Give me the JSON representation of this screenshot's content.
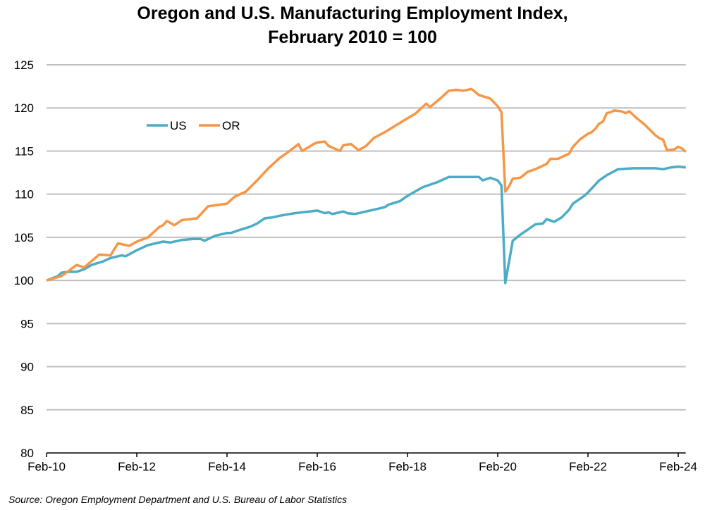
{
  "chart_data": {
    "type": "line",
    "title": "Oregon and U.S. Manufacturing Employment Index,",
    "subtitle": "February 2010 = 100",
    "xlabel": "",
    "ylabel": "",
    "ylim": [
      80,
      125
    ],
    "yticks": [
      "80",
      "85",
      "90",
      "95",
      "100",
      "105",
      "110",
      "115",
      "120",
      "125"
    ],
    "xlim": [
      "2010-02",
      "2024-04"
    ],
    "xticks": [
      {
        "date": "2010-02",
        "label": "Feb-10"
      },
      {
        "date": "2012-02",
        "label": "Feb-12"
      },
      {
        "date": "2014-02",
        "label": "Feb-14"
      },
      {
        "date": "2016-02",
        "label": "Feb-16"
      },
      {
        "date": "2018-02",
        "label": "Feb-18"
      },
      {
        "date": "2020-02",
        "label": "Feb-20"
      },
      {
        "date": "2022-02",
        "label": "Feb-22"
      },
      {
        "date": "2024-02",
        "label": "Feb-24"
      }
    ],
    "grid": true,
    "legend_position": "top-left",
    "series": [
      {
        "name": "US",
        "color": "#4bacc6",
        "points": [
          [
            "2010-02",
            100
          ],
          [
            "2010-05",
            100.5
          ],
          [
            "2010-06",
            100.9
          ],
          [
            "2010-08",
            101.0
          ],
          [
            "2010-10",
            101.0
          ],
          [
            "2010-12",
            101.3
          ],
          [
            "2011-02",
            101.8
          ],
          [
            "2011-05",
            102.2
          ],
          [
            "2011-07",
            102.6
          ],
          [
            "2011-10",
            102.9
          ],
          [
            "2011-11",
            102.8
          ],
          [
            "2012-02",
            103.5
          ],
          [
            "2012-05",
            104.1
          ],
          [
            "2012-07",
            104.3
          ],
          [
            "2012-09",
            104.5
          ],
          [
            "2012-11",
            104.4
          ],
          [
            "2013-02",
            104.7
          ],
          [
            "2013-05",
            104.8
          ],
          [
            "2013-07",
            104.8
          ],
          [
            "2013-08",
            104.6
          ],
          [
            "2013-11",
            105.2
          ],
          [
            "2014-02",
            105.5
          ],
          [
            "2014-03",
            105.5
          ],
          [
            "2014-05",
            105.8
          ],
          [
            "2014-08",
            106.2
          ],
          [
            "2014-10",
            106.6
          ],
          [
            "2014-12",
            107.2
          ],
          [
            "2015-02",
            107.3
          ],
          [
            "2015-04",
            107.5
          ],
          [
            "2015-08",
            107.8
          ],
          [
            "2015-12",
            108.0
          ],
          [
            "2016-02",
            108.1
          ],
          [
            "2016-04",
            107.8
          ],
          [
            "2016-05",
            107.9
          ],
          [
            "2016-06",
            107.7
          ],
          [
            "2016-09",
            108.0
          ],
          [
            "2016-10",
            107.8
          ],
          [
            "2016-12",
            107.7
          ],
          [
            "2017-03",
            108.0
          ],
          [
            "2017-07",
            108.4
          ],
          [
            "2017-08",
            108.5
          ],
          [
            "2017-09",
            108.8
          ],
          [
            "2017-12",
            109.2
          ],
          [
            "2018-02",
            109.8
          ],
          [
            "2018-06",
            110.8
          ],
          [
            "2018-10",
            111.4
          ],
          [
            "2019-01",
            112.0
          ],
          [
            "2019-05",
            112.0
          ],
          [
            "2019-09",
            112.0
          ],
          [
            "2019-10",
            111.6
          ],
          [
            "2019-12",
            111.9
          ],
          [
            "2020-02",
            111.6
          ],
          [
            "2020-03",
            111.0
          ],
          [
            "2020-04",
            99.7
          ],
          [
            "2020-06",
            104.6
          ],
          [
            "2020-08",
            105.3
          ],
          [
            "2020-10",
            105.9
          ],
          [
            "2020-12",
            106.5
          ],
          [
            "2021-02",
            106.6
          ],
          [
            "2021-03",
            107.1
          ],
          [
            "2021-05",
            106.8
          ],
          [
            "2021-07",
            107.3
          ],
          [
            "2021-09",
            108.2
          ],
          [
            "2021-10",
            108.9
          ],
          [
            "2022-01",
            109.8
          ],
          [
            "2022-02",
            110.2
          ],
          [
            "2022-05",
            111.6
          ],
          [
            "2022-07",
            112.2
          ],
          [
            "2022-10",
            112.9
          ],
          [
            "2023-02",
            113.0
          ],
          [
            "2023-08",
            113.0
          ],
          [
            "2023-10",
            112.9
          ],
          [
            "2023-12",
            113.1
          ],
          [
            "2024-02",
            113.2
          ],
          [
            "2024-04",
            113.1
          ]
        ]
      },
      {
        "name": "OR",
        "color": "#f79646",
        "points": [
          [
            "2010-02",
            100
          ],
          [
            "2010-06",
            100.5
          ],
          [
            "2010-10",
            101.8
          ],
          [
            "2010-12",
            101.5
          ],
          [
            "2011-04",
            103.0
          ],
          [
            "2011-07",
            102.9
          ],
          [
            "2011-09",
            104.3
          ],
          [
            "2011-12",
            104.0
          ],
          [
            "2012-02",
            104.5
          ],
          [
            "2012-05",
            105.0
          ],
          [
            "2012-08",
            106.2
          ],
          [
            "2012-09",
            106.4
          ],
          [
            "2012-10",
            106.9
          ],
          [
            "2012-12",
            106.4
          ],
          [
            "2013-02",
            107.0
          ],
          [
            "2013-06",
            107.2
          ],
          [
            "2013-09",
            108.6
          ],
          [
            "2014-02",
            108.9
          ],
          [
            "2014-04",
            109.7
          ],
          [
            "2014-07",
            110.3
          ],
          [
            "2014-10",
            111.6
          ],
          [
            "2015-01",
            113.0
          ],
          [
            "2015-04",
            114.2
          ],
          [
            "2015-06",
            114.8
          ],
          [
            "2015-09",
            115.8
          ],
          [
            "2015-10",
            115.0
          ],
          [
            "2016-01",
            115.8
          ],
          [
            "2016-02",
            116.0
          ],
          [
            "2016-04",
            116.1
          ],
          [
            "2016-05",
            115.6
          ],
          [
            "2016-08",
            115.0
          ],
          [
            "2016-09",
            115.7
          ],
          [
            "2016-11",
            115.8
          ],
          [
            "2017-01",
            115.1
          ],
          [
            "2017-03",
            115.6
          ],
          [
            "2017-05",
            116.5
          ],
          [
            "2017-08",
            117.2
          ],
          [
            "2018-02",
            118.8
          ],
          [
            "2018-04",
            119.3
          ],
          [
            "2018-07",
            120.5
          ],
          [
            "2018-08",
            120.1
          ],
          [
            "2018-11",
            121.2
          ],
          [
            "2019-01",
            122.0
          ],
          [
            "2019-03",
            122.1
          ],
          [
            "2019-05",
            122.0
          ],
          [
            "2019-07",
            122.2
          ],
          [
            "2019-09",
            121.5
          ],
          [
            "2019-12",
            121.1
          ],
          [
            "2020-02",
            120.2
          ],
          [
            "2020-03",
            119.5
          ],
          [
            "2020-04",
            110.3
          ],
          [
            "2020-05",
            110.9
          ],
          [
            "2020-06",
            111.8
          ],
          [
            "2020-08",
            111.9
          ],
          [
            "2020-10",
            112.6
          ],
          [
            "2020-12",
            112.9
          ],
          [
            "2021-03",
            113.5
          ],
          [
            "2021-04",
            114.1
          ],
          [
            "2021-06",
            114.1
          ],
          [
            "2021-09",
            114.7
          ],
          [
            "2021-10",
            115.5
          ],
          [
            "2021-12",
            116.4
          ],
          [
            "2022-02",
            117.0
          ],
          [
            "2022-03",
            117.2
          ],
          [
            "2022-04",
            117.6
          ],
          [
            "2022-05",
            118.2
          ],
          [
            "2022-06",
            118.4
          ],
          [
            "2022-07",
            119.4
          ],
          [
            "2022-08",
            119.5
          ],
          [
            "2022-09",
            119.7
          ],
          [
            "2022-11",
            119.6
          ],
          [
            "2022-12",
            119.4
          ],
          [
            "2023-01",
            119.6
          ],
          [
            "2023-03",
            118.8
          ],
          [
            "2023-05",
            118.1
          ],
          [
            "2023-08",
            116.8
          ],
          [
            "2023-09",
            116.5
          ],
          [
            "2023-10",
            116.3
          ],
          [
            "2023-11",
            115.1
          ],
          [
            "2024-01",
            115.2
          ],
          [
            "2024-02",
            115.5
          ],
          [
            "2024-03",
            115.3
          ],
          [
            "2024-04",
            114.9
          ]
        ]
      }
    ]
  },
  "source": "Source: Oregon Employment Department and U.S. Bureau of Labor Statistics"
}
